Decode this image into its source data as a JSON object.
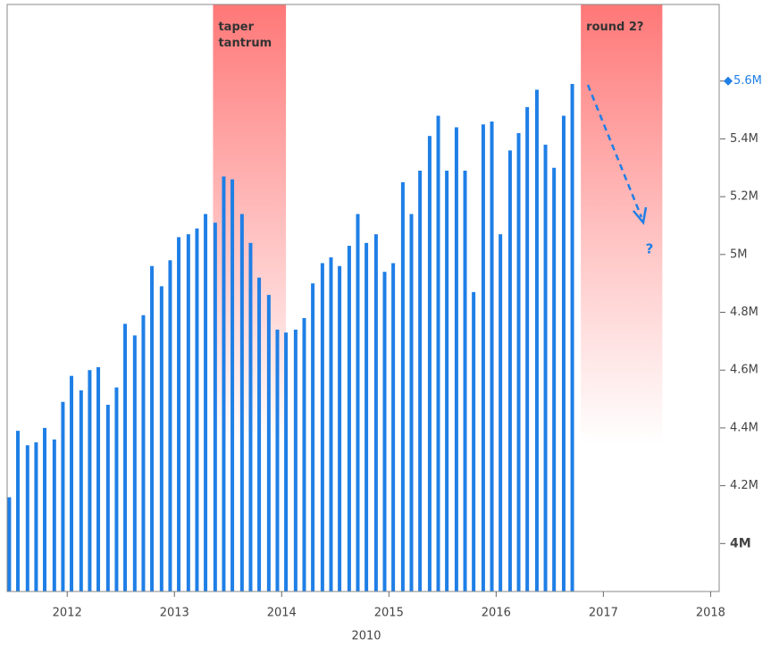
{
  "chart_data": {
    "type": "bar",
    "x_label": "2010",
    "color": "#1f7fe6",
    "xlim": [
      2011.44,
      2018.08
    ],
    "xticks": [
      2012,
      2013,
      2014,
      2015,
      2016,
      2017,
      2018
    ],
    "ylim": [
      3.834,
      5.865
    ],
    "yticks": [
      {
        "value": 4.0,
        "label": "4M"
      },
      {
        "value": 4.2,
        "label": "4.2M"
      },
      {
        "value": 4.4,
        "label": "4.4M"
      },
      {
        "value": 4.6,
        "label": "4.6M"
      },
      {
        "value": 4.8,
        "label": "4.8M"
      },
      {
        "value": 5.0,
        "label": "5M"
      },
      {
        "value": 5.2,
        "label": "5.2M"
      },
      {
        "value": 5.4,
        "label": "5.4M"
      },
      {
        "value": 5.6,
        "label": "5.6M"
      }
    ],
    "x": [
      2011.46,
      2011.54,
      2011.63,
      2011.71,
      2011.79,
      2011.88,
      2011.96,
      2012.04,
      2012.13,
      2012.21,
      2012.29,
      2012.38,
      2012.46,
      2012.54,
      2012.63,
      2012.71,
      2012.79,
      2012.88,
      2012.96,
      2013.04,
      2013.13,
      2013.21,
      2013.29,
      2013.38,
      2013.46,
      2013.54,
      2013.63,
      2013.71,
      2013.79,
      2013.88,
      2013.96,
      2014.04,
      2014.13,
      2014.21,
      2014.29,
      2014.38,
      2014.46,
      2014.54,
      2014.63,
      2014.71,
      2014.79,
      2014.88,
      2014.96,
      2015.04,
      2015.13,
      2015.21,
      2015.29,
      2015.38,
      2015.46,
      2015.54,
      2015.63,
      2015.71,
      2015.79,
      2015.88,
      2015.96,
      2016.04,
      2016.13,
      2016.21,
      2016.29,
      2016.38,
      2016.46,
      2016.54,
      2016.63,
      2016.71
    ],
    "values": [
      4.16,
      4.39,
      4.34,
      4.35,
      4.4,
      4.36,
      4.49,
      4.58,
      4.53,
      4.6,
      4.61,
      4.48,
      4.54,
      4.76,
      4.72,
      4.79,
      4.96,
      4.89,
      4.98,
      5.06,
      5.07,
      5.09,
      5.14,
      5.11,
      5.27,
      5.26,
      5.14,
      5.04,
      4.92,
      4.86,
      4.74,
      4.73,
      4.74,
      4.78,
      4.9,
      4.97,
      4.99,
      4.96,
      5.03,
      5.14,
      5.04,
      5.07,
      4.94,
      4.97,
      5.25,
      5.14,
      5.29,
      5.41,
      5.48,
      5.29,
      5.44,
      5.29,
      4.87,
      5.45,
      5.46,
      5.07,
      5.36,
      5.42,
      5.51,
      5.57,
      5.38,
      5.3,
      5.48,
      5.59
    ],
    "annotations": [
      {
        "text": "taper\ntantrum",
        "x": [
          2013.36,
          2014.04
        ]
      },
      {
        "text": "round 2?",
        "x": [
          2016.79,
          2017.55
        ]
      },
      {
        "text": "?"
      }
    ]
  }
}
